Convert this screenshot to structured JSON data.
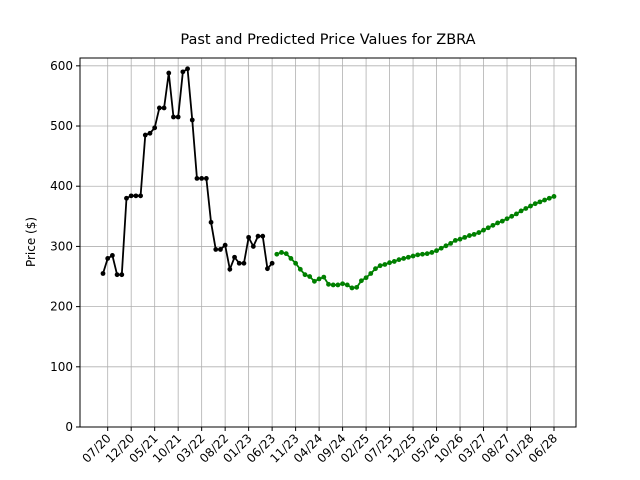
{
  "chart_data": {
    "type": "line",
    "title": "Past and Predicted Price Values for ZBRA",
    "ylabel": "Price ($)",
    "categories": [
      null,
      "07/20",
      null,
      null,
      null,
      null,
      "12/20",
      null,
      null,
      null,
      null,
      "05/21",
      null,
      null,
      null,
      null,
      "10/21",
      null,
      null,
      null,
      null,
      "03/22",
      null,
      null,
      null,
      null,
      "08/22",
      null,
      null,
      null,
      null,
      "01/23",
      null,
      null,
      null,
      null,
      "06/23",
      null,
      null,
      null,
      null,
      "11/23",
      null,
      null,
      null,
      null,
      "04/24",
      null,
      null,
      null,
      null,
      "09/24",
      null,
      null,
      null,
      null,
      "02/25",
      null,
      null,
      null,
      null,
      "07/25",
      null,
      null,
      null,
      null,
      "12/25",
      null,
      null,
      null,
      null,
      "05/26",
      null,
      null,
      null,
      null,
      "10/26",
      null,
      null,
      null,
      null,
      "03/27",
      null,
      null,
      null,
      null,
      "08/27",
      null,
      null,
      null,
      null,
      "01/28",
      null,
      null,
      null,
      null,
      "06/28"
    ],
    "series": [
      {
        "color": "#000000",
        "values": [
          255,
          280,
          285,
          253,
          253,
          380,
          384,
          384,
          384,
          485,
          488,
          497,
          530,
          530,
          588,
          515,
          515,
          590,
          595,
          510,
          413,
          413,
          413,
          340,
          295,
          295,
          302,
          262,
          282,
          272,
          272,
          315,
          300,
          317,
          317,
          263,
          272,
          null,
          null,
          null,
          null,
          null,
          null,
          null,
          null,
          null,
          null,
          null,
          null,
          null,
          null,
          null,
          null,
          null,
          null,
          null,
          null,
          null,
          null,
          null,
          null,
          null,
          null,
          null,
          null,
          null,
          null,
          null,
          null,
          null,
          null,
          null,
          null,
          null,
          null,
          null,
          null,
          null,
          null,
          null,
          null,
          null,
          null,
          null,
          null,
          null,
          null,
          null,
          null,
          null,
          null,
          null,
          null,
          null,
          null,
          null,
          null
        ]
      },
      {
        "color": "#008000",
        "values": [
          null,
          null,
          null,
          null,
          null,
          null,
          null,
          null,
          null,
          null,
          null,
          null,
          null,
          null,
          null,
          null,
          null,
          null,
          null,
          null,
          null,
          null,
          null,
          null,
          null,
          null,
          null,
          null,
          null,
          null,
          null,
          null,
          null,
          null,
          null,
          null,
          null,
          287,
          290,
          288,
          280,
          272,
          262,
          253,
          250,
          242,
          246,
          249,
          237,
          236,
          236,
          238,
          236,
          231,
          232,
          243,
          248,
          255,
          263,
          268,
          270,
          273,
          275,
          278,
          280,
          282,
          284,
          286,
          287,
          288,
          290,
          293,
          297,
          301,
          305,
          310,
          312,
          315,
          318,
          320,
          323,
          327,
          331,
          335,
          339,
          342,
          346,
          350,
          354,
          359,
          363,
          367,
          371,
          374,
          377,
          380,
          383
        ]
      }
    ],
    "ylim": [
      0,
      613
    ],
    "yticks": [
      0,
      100,
      200,
      300,
      400,
      500,
      600
    ],
    "grid": true
  }
}
